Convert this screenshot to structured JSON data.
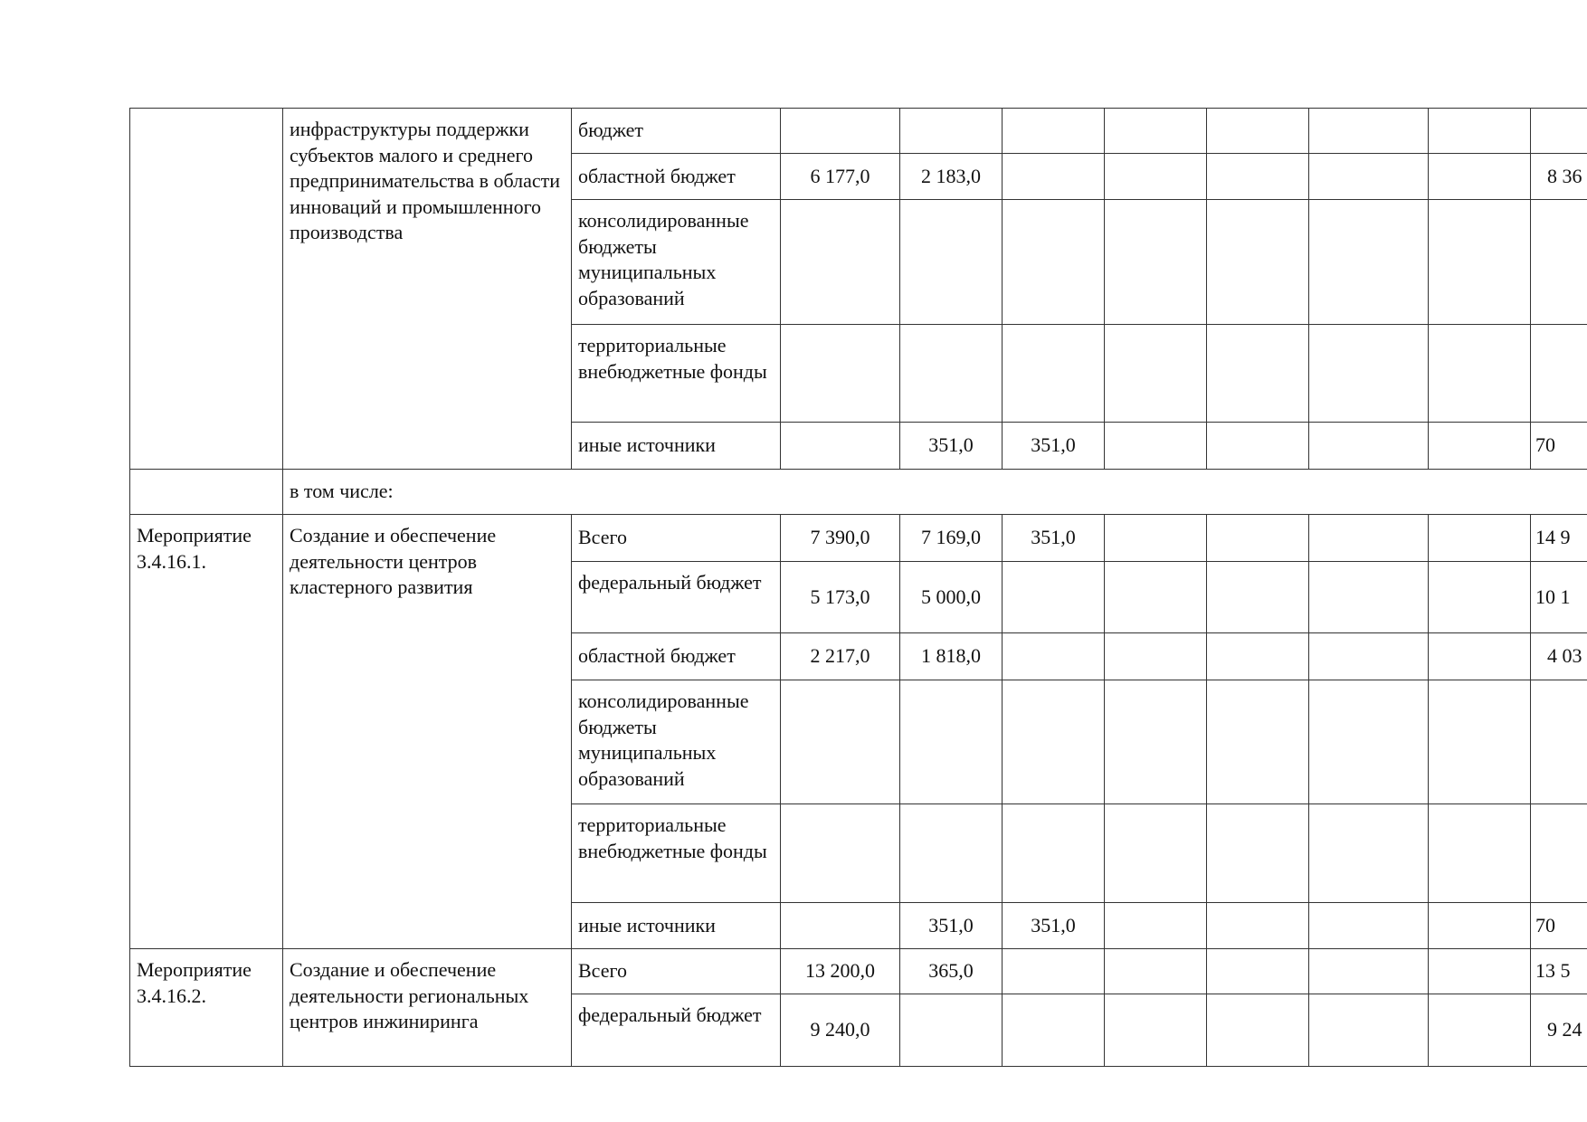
{
  "table": {
    "blocks": [
      {
        "code": "",
        "name": "инфраструктуры поддержки субъектов малого и среднего предпринимательства в области инноваций и промышленного производства",
        "rows": [
          {
            "source": "бюджет",
            "values": [
              "",
              "",
              "",
              "",
              "",
              "",
              "",
              ""
            ]
          },
          {
            "source": "областной бюджет",
            "values": [
              "6 177,0",
              "2 183,0",
              "",
              "",
              "",
              "",
              "",
              "8 36"
            ]
          },
          {
            "source": "консолидированные бюджеты муниципальных образований",
            "values": [
              "",
              "",
              "",
              "",
              "",
              "",
              "",
              ""
            ]
          },
          {
            "source": "территориальные внебюджетные фонды",
            "values": [
              "",
              "",
              "",
              "",
              "",
              "",
              "",
              ""
            ]
          },
          {
            "source": "иные источники",
            "values": [
              "",
              "351,0",
              "351,0",
              "",
              "",
              "",
              "",
              "70"
            ]
          }
        ]
      },
      {
        "separator": "в том числе:"
      },
      {
        "code": "Мероприятие 3.4.16.1.",
        "name": "Создание и обеспечение деятельности центров кластерного развития",
        "rows": [
          {
            "source": "Всего",
            "values": [
              "7 390,0",
              "7 169,0",
              "351,0",
              "",
              "",
              "",
              "",
              "14 9"
            ]
          },
          {
            "source": "федеральный бюджет",
            "values": [
              "5 173,0",
              "5 000,0",
              "",
              "",
              "",
              "",
              "",
              "10 1"
            ]
          },
          {
            "source": "областной бюджет",
            "values": [
              "2 217,0",
              "1 818,0",
              "",
              "",
              "",
              "",
              "",
              "4 03"
            ]
          },
          {
            "source": "консолидированные бюджеты муниципальных образований",
            "values": [
              "",
              "",
              "",
              "",
              "",
              "",
              "",
              ""
            ]
          },
          {
            "source": "территориальные внебюджетные фонды",
            "values": [
              "",
              "",
              "",
              "",
              "",
              "",
              "",
              ""
            ]
          },
          {
            "source": "иные источники",
            "values": [
              "",
              "351,0",
              "351,0",
              "",
              "",
              "",
              "",
              "70"
            ]
          }
        ]
      },
      {
        "code": "Мероприятие 3.4.16.2.",
        "name": "Создание и обеспечение деятельности региональных центров инжиниринга",
        "rows": [
          {
            "source": "Всего",
            "values": [
              "13 200,0",
              "365,0",
              "",
              "",
              "",
              "",
              "",
              "13 5"
            ]
          },
          {
            "source": "федеральный бюджет",
            "values": [
              "9 240,0",
              "",
              "",
              "",
              "",
              "",
              "",
              "9 24"
            ]
          }
        ]
      }
    ]
  }
}
